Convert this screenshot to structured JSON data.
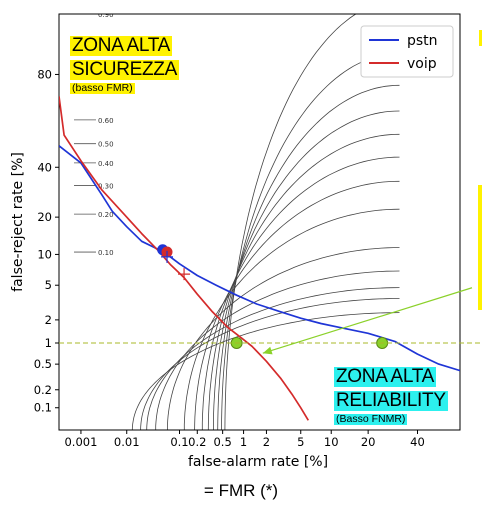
{
  "chart_data": {
    "type": "line",
    "title": "",
    "xlabel": "false-alarm rate [%]",
    "ylabel": "false-reject rate [%]",
    "x_scale": "normal-deviate (probit)",
    "y_scale": "normal-deviate (probit)",
    "xlim": [
      0.0003,
      60
    ],
    "ylim": [
      0.04,
      94
    ],
    "x_ticks": [
      0.001,
      0.01,
      0.1,
      0.2,
      0.5,
      1,
      2,
      5,
      10,
      20,
      40
    ],
    "x_tick_labels": [
      "0.001",
      "0.01",
      "0.1",
      "0.2",
      "0.5",
      "1",
      "2",
      "5",
      "10",
      "20",
      "40"
    ],
    "y_ticks": [
      0.1,
      0.2,
      0.5,
      1,
      2,
      5,
      10,
      20,
      40,
      80
    ],
    "y_tick_labels": [
      "0.1",
      "0.2",
      "0.5",
      "1",
      "2",
      "5",
      "10",
      "20",
      "40",
      "80"
    ],
    "legend_position": "top-right",
    "series": [
      {
        "name": "pstn",
        "color": "#1f35d6",
        "points": [
          [
            0.0003,
            50
          ],
          [
            0.001,
            42
          ],
          [
            0.003,
            28
          ],
          [
            0.005,
            22
          ],
          [
            0.01,
            17
          ],
          [
            0.02,
            13
          ],
          [
            0.035,
            11.5
          ],
          [
            0.06,
            10
          ],
          [
            0.1,
            8.2
          ],
          [
            0.2,
            6.3
          ],
          [
            0.4,
            5
          ],
          [
            0.8,
            3.9
          ],
          [
            1.5,
            3.1
          ],
          [
            3,
            2.5
          ],
          [
            5,
            2.1
          ],
          [
            8,
            1.8
          ],
          [
            12,
            1.6
          ],
          [
            20,
            1.35
          ],
          [
            30,
            1.05
          ],
          [
            40,
            0.7
          ],
          [
            50,
            0.5
          ],
          [
            60,
            0.4
          ]
        ]
      },
      {
        "name": "voip",
        "color": "#d42b2b",
        "points": [
          [
            0.0003,
            72
          ],
          [
            0.0004,
            55
          ],
          [
            0.001,
            43
          ],
          [
            0.003,
            30
          ],
          [
            0.01,
            20
          ],
          [
            0.02,
            15
          ],
          [
            0.04,
            11
          ],
          [
            0.07,
            8
          ],
          [
            0.12,
            6
          ],
          [
            0.2,
            4
          ],
          [
            0.35,
            2.5
          ],
          [
            0.6,
            1.6
          ],
          [
            0.9,
            1.2
          ],
          [
            1.3,
            0.9
          ],
          [
            2,
            0.55
          ],
          [
            3,
            0.3
          ],
          [
            4,
            0.17
          ],
          [
            5,
            0.1
          ],
          [
            6,
            0.06
          ]
        ]
      }
    ],
    "cost_curve_labels": [
      "0.90",
      "0.60",
      "0.50",
      "0.40",
      "0.30",
      "0.20",
      "0.10"
    ],
    "cost_curve_label_y": [
      94,
      62,
      51,
      42,
      32,
      21,
      10.5
    ],
    "cost_curve_levels": [
      0.9,
      0.8,
      0.7,
      0.6,
      0.5,
      0.4,
      0.3,
      0.2,
      0.1,
      0.06,
      0.04,
      0.03,
      0.02
    ],
    "markers": [
      {
        "name": "pstn-eer-dot",
        "x": 0.05,
        "y": 11,
        "shape": "circle",
        "color": "#1f35d6"
      },
      {
        "name": "voip-eer-dot",
        "x": 0.06,
        "y": 10.5,
        "shape": "circle",
        "color": "#d42b2b"
      },
      {
        "name": "pstn-cross",
        "x": 0.06,
        "y": 9.5,
        "shape": "cross",
        "color": "#1f35d6"
      },
      {
        "name": "voip-cross",
        "x": 0.12,
        "y": 6.5,
        "shape": "cross",
        "color": "#d42b2b"
      },
      {
        "name": "voip-green-dot",
        "x": 0.8,
        "y": 1,
        "shape": "circle",
        "color": "#8bd12a"
      },
      {
        "name": "pstn-green-dot",
        "x": 25,
        "y": 1,
        "shape": "circle",
        "color": "#8bd12a"
      }
    ],
    "reference_line": {
      "y": 1,
      "color": "#a8b82a",
      "style": "dashed"
    },
    "annotation_arrow": {
      "from_x": 60,
      "from_y": 4.7,
      "to_x": 1.8,
      "to_y": 0.72,
      "color": "#8bd12a"
    }
  },
  "annotations": {
    "zone_high_security": {
      "title_line1": "ZONA ALTA",
      "title_line2": "SICUREZZA",
      "subtitle": "(basso FMR)"
    },
    "zone_high_reliability": {
      "title_line1": "ZONA ALTA",
      "title_line2": "RELIABILITY",
      "subtitle": "(Basso FNMR)"
    }
  },
  "caption": "= FMR (*)",
  "colors": {
    "highlight_yellow": "#fff200",
    "highlight_cyan": "#2cf0ee",
    "pstn": "#1f35d6",
    "voip": "#d42b2b",
    "green": "#8bd12a"
  }
}
